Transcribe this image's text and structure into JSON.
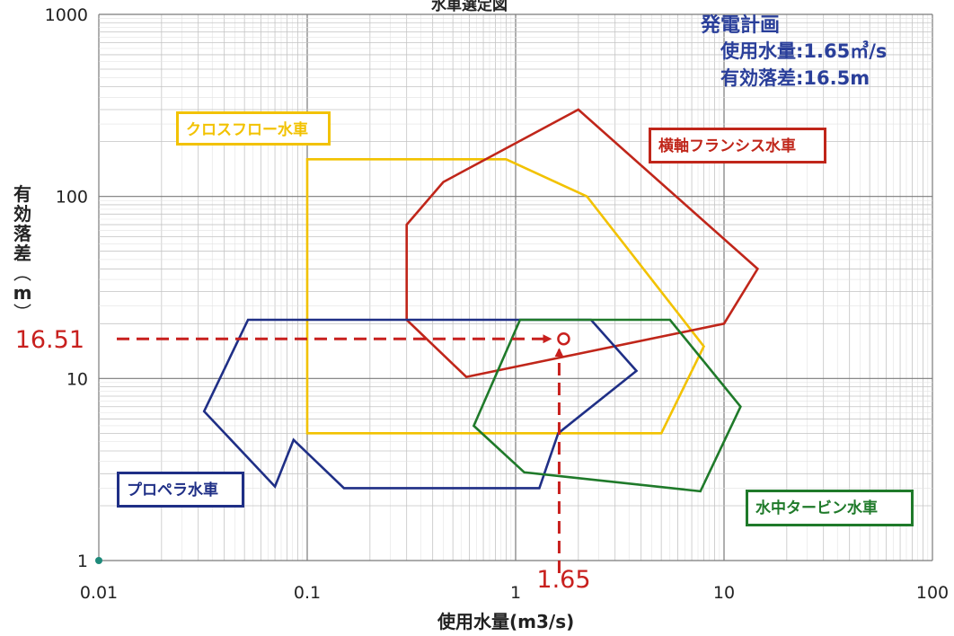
{
  "chart_data": {
    "type": "scatter",
    "title": "水車選定図",
    "xlabel": "使用水量(m3/s)",
    "ylabel": "有効落差(m)",
    "xscale": "log",
    "yscale": "log",
    "xlim": [
      0.01,
      100
    ],
    "ylim": [
      1,
      1000
    ],
    "grid": true,
    "xticks": [
      "0.01",
      "0.1",
      "1",
      "10",
      "100"
    ],
    "yticks": [
      "1",
      "10",
      "100",
      "1000"
    ],
    "regions": [
      {
        "name": "クロスフロー水車",
        "color": "#f2c200",
        "points": [
          [
            0.1,
            5.0
          ],
          [
            5.0,
            5.0
          ],
          [
            8.0,
            15.0
          ],
          [
            2.2,
            100.0
          ],
          [
            0.9,
            160.0
          ],
          [
            0.1,
            160.0
          ]
        ]
      },
      {
        "name": "横軸フランシス水車",
        "color": "#c0261a",
        "points": [
          [
            0.3,
            21.0
          ],
          [
            0.58,
            10.2
          ],
          [
            10.0,
            20.0
          ],
          [
            14.5,
            40.0
          ],
          [
            2.0,
            300.0
          ],
          [
            0.45,
            120.0
          ],
          [
            0.3,
            70.0
          ]
        ]
      },
      {
        "name": "プロペラ水車",
        "color": "#1f2f86",
        "points": [
          [
            0.032,
            6.6
          ],
          [
            0.07,
            2.55
          ],
          [
            0.086,
            4.6
          ],
          [
            0.15,
            2.5
          ],
          [
            1.3,
            2.5
          ],
          [
            1.6,
            5.0
          ],
          [
            3.8,
            11.0
          ],
          [
            2.3,
            21.0
          ],
          [
            0.052,
            21.0
          ]
        ]
      },
      {
        "name": "水中タービン水車",
        "color": "#1f7a2a",
        "points": [
          [
            0.63,
            5.5
          ],
          [
            1.1,
            3.05
          ],
          [
            7.7,
            2.4
          ],
          [
            12.0,
            7.0
          ],
          [
            5.5,
            21.0
          ],
          [
            1.05,
            21.0
          ]
        ]
      }
    ],
    "annotations": [
      {
        "label": "16.51",
        "x": 1.65,
        "y": 16.51,
        "color": "#c8201e",
        "kind": "horizontal-guide"
      },
      {
        "label": "1.65",
        "x": 1.65,
        "y": 16.51,
        "color": "#c8201e",
        "kind": "vertical-guide"
      }
    ],
    "plan_box": {
      "title": "発電計画",
      "flow": "使用水量:1.65㎥/s",
      "head": "有効落差:16.5m"
    }
  }
}
